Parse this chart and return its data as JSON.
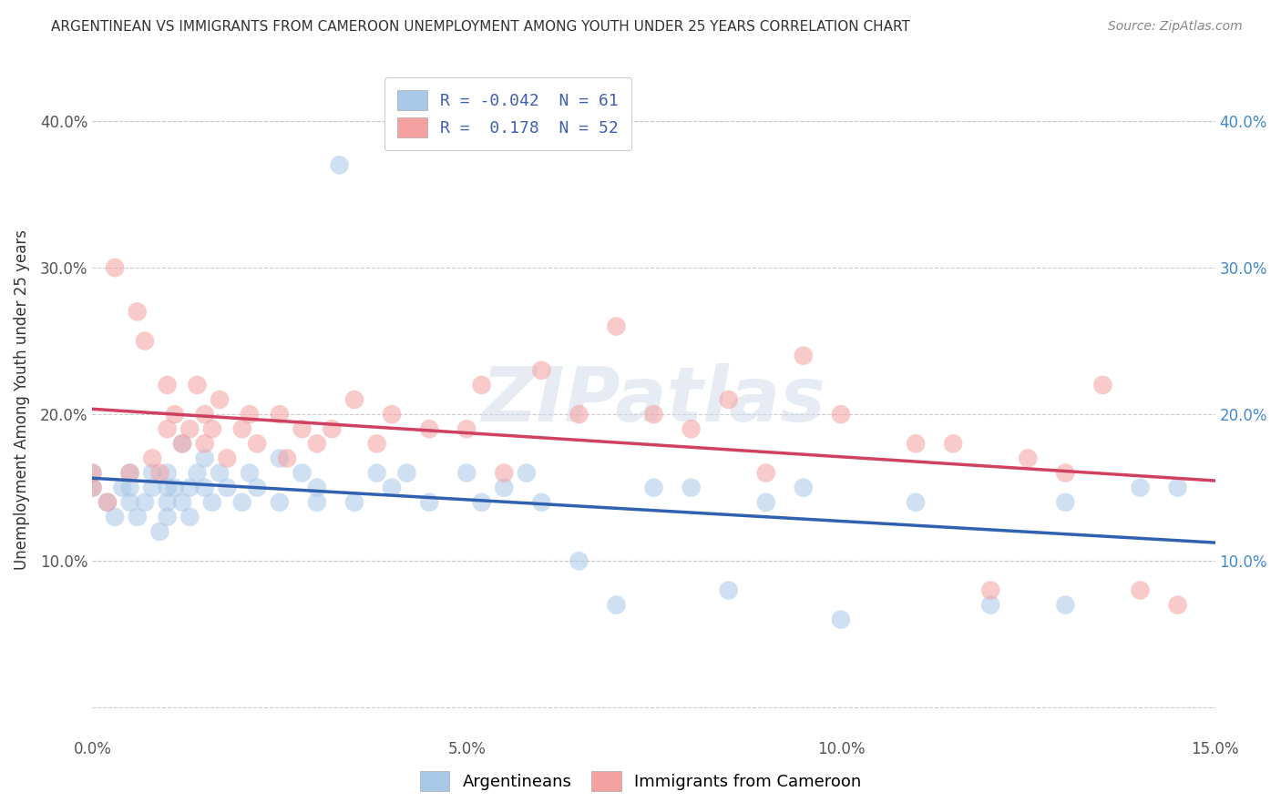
{
  "title": "ARGENTINEAN VS IMMIGRANTS FROM CAMEROON UNEMPLOYMENT AMONG YOUTH UNDER 25 YEARS CORRELATION CHART",
  "source": "Source: ZipAtlas.com",
  "ylabel": "Unemployment Among Youth under 25 years",
  "xlim": [
    0.0,
    0.15
  ],
  "ylim": [
    -0.02,
    0.44
  ],
  "x_ticks": [
    0.0,
    0.05,
    0.1,
    0.15
  ],
  "x_tick_labels": [
    "0.0%",
    "5.0%",
    "10.0%",
    "15.0%"
  ],
  "y_ticks": [
    0.0,
    0.1,
    0.2,
    0.3,
    0.4
  ],
  "y_tick_labels_left": [
    "",
    "10.0%",
    "20.0%",
    "30.0%",
    "40.0%"
  ],
  "y_tick_labels_right": [
    "",
    "10.0%",
    "20.0%",
    "30.0%",
    "40.0%"
  ],
  "legend_blue_label": "R = -0.042  N = 61",
  "legend_pink_label": "R =  0.178  N = 52",
  "blue_color": "#a8c8e8",
  "pink_color": "#f4a0a0",
  "blue_line_color": "#3060b0",
  "pink_line_color": "#d04060",
  "watermark_text": "ZIPatlas",
  "legend_entries": [
    "Argentineans",
    "Immigrants from Cameroon"
  ],
  "blue_scatter_x": [
    0.0,
    0.0,
    0.002,
    0.003,
    0.004,
    0.005,
    0.005,
    0.005,
    0.006,
    0.007,
    0.008,
    0.008,
    0.009,
    0.01,
    0.01,
    0.01,
    0.01,
    0.011,
    0.012,
    0.012,
    0.013,
    0.013,
    0.014,
    0.015,
    0.015,
    0.016,
    0.017,
    0.018,
    0.02,
    0.021,
    0.022,
    0.025,
    0.025,
    0.028,
    0.03,
    0.03,
    0.033,
    0.035,
    0.038,
    0.04,
    0.042,
    0.045,
    0.05,
    0.052,
    0.055,
    0.058,
    0.06,
    0.065,
    0.07,
    0.075,
    0.08,
    0.085,
    0.09,
    0.095,
    0.1,
    0.11,
    0.12,
    0.13,
    0.13,
    0.14,
    0.145
  ],
  "blue_scatter_y": [
    0.15,
    0.16,
    0.14,
    0.13,
    0.15,
    0.14,
    0.16,
    0.15,
    0.13,
    0.14,
    0.15,
    0.16,
    0.12,
    0.15,
    0.14,
    0.16,
    0.13,
    0.15,
    0.14,
    0.18,
    0.15,
    0.13,
    0.16,
    0.15,
    0.17,
    0.14,
    0.16,
    0.15,
    0.14,
    0.16,
    0.15,
    0.17,
    0.14,
    0.16,
    0.14,
    0.15,
    0.37,
    0.14,
    0.16,
    0.15,
    0.16,
    0.14,
    0.16,
    0.14,
    0.15,
    0.16,
    0.14,
    0.1,
    0.07,
    0.15,
    0.15,
    0.08,
    0.14,
    0.15,
    0.06,
    0.14,
    0.07,
    0.14,
    0.07,
    0.15,
    0.15
  ],
  "pink_scatter_x": [
    0.0,
    0.0,
    0.002,
    0.003,
    0.005,
    0.006,
    0.007,
    0.008,
    0.009,
    0.01,
    0.01,
    0.011,
    0.012,
    0.013,
    0.014,
    0.015,
    0.015,
    0.016,
    0.017,
    0.018,
    0.02,
    0.021,
    0.022,
    0.025,
    0.026,
    0.028,
    0.03,
    0.032,
    0.035,
    0.038,
    0.04,
    0.045,
    0.05,
    0.052,
    0.055,
    0.06,
    0.065,
    0.07,
    0.075,
    0.08,
    0.085,
    0.09,
    0.095,
    0.1,
    0.11,
    0.115,
    0.12,
    0.125,
    0.13,
    0.135,
    0.14,
    0.145
  ],
  "pink_scatter_y": [
    0.16,
    0.15,
    0.14,
    0.3,
    0.16,
    0.27,
    0.25,
    0.17,
    0.16,
    0.19,
    0.22,
    0.2,
    0.18,
    0.19,
    0.22,
    0.2,
    0.18,
    0.19,
    0.21,
    0.17,
    0.19,
    0.2,
    0.18,
    0.2,
    0.17,
    0.19,
    0.18,
    0.19,
    0.21,
    0.18,
    0.2,
    0.19,
    0.19,
    0.22,
    0.16,
    0.23,
    0.2,
    0.26,
    0.2,
    0.19,
    0.21,
    0.16,
    0.24,
    0.2,
    0.18,
    0.18,
    0.08,
    0.17,
    0.16,
    0.22,
    0.08,
    0.07
  ]
}
